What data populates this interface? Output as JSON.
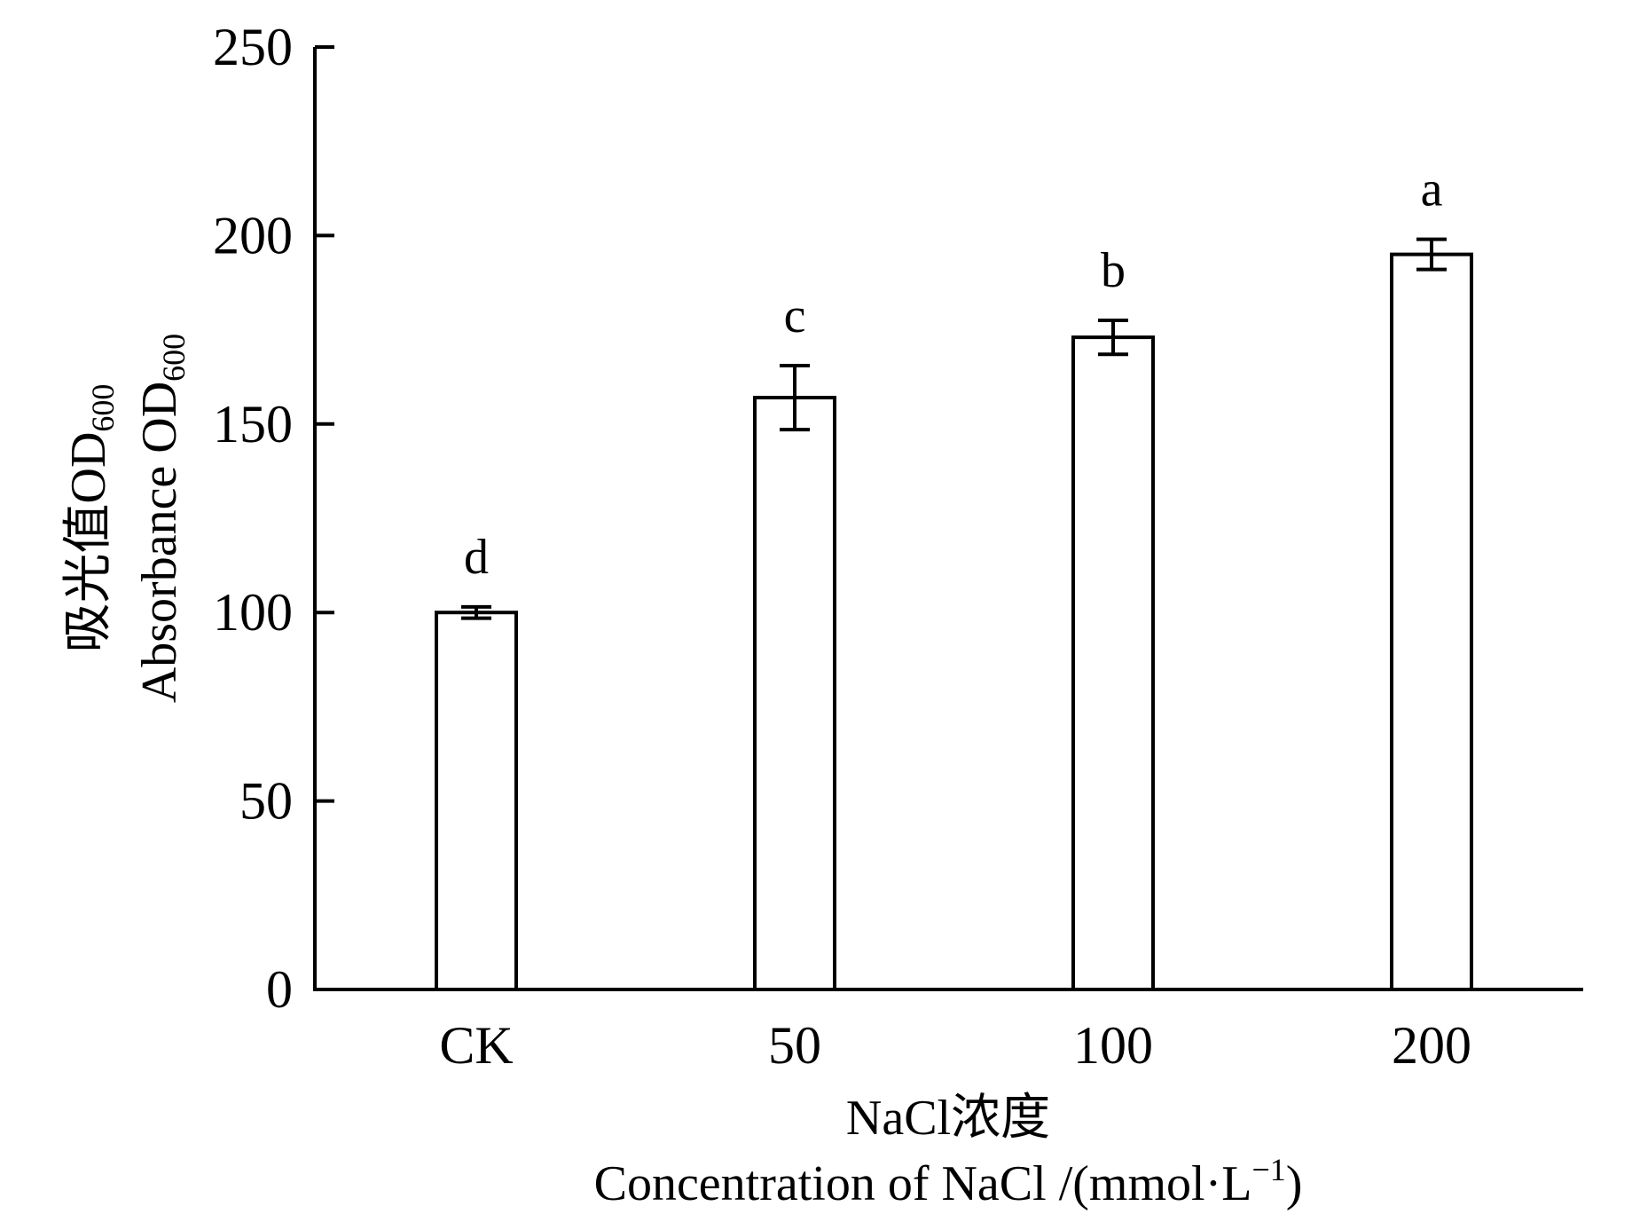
{
  "chart_data": {
    "type": "bar",
    "categories": [
      "CK",
      "50",
      "100",
      "200"
    ],
    "values": [
      100,
      157,
      173,
      195
    ],
    "errors": [
      1.5,
      8.5,
      4.5,
      4.0
    ],
    "significance": [
      "d",
      "c",
      "b",
      "a"
    ],
    "ylim": [
      0,
      250
    ],
    "yticks": [
      "0",
      "50",
      "100",
      "150",
      "200",
      "250"
    ],
    "ytick_values": [
      0,
      50,
      100,
      150,
      200,
      250
    ],
    "ylabel_cn": "吸光值OD",
    "ylabel_cn_sub": "600",
    "ylabel_en": "Absorbance OD",
    "ylabel_en_sub": "600",
    "xlabel_cn": "NaCl浓度",
    "xlabel_en": "Concentration of NaCl /(mmol·L",
    "xlabel_en_sup": "−1",
    "xlabel_en_end": ")",
    "bar_fill": "#ffffff",
    "bar_stroke": "#000000",
    "grid": false,
    "legend": "none"
  }
}
